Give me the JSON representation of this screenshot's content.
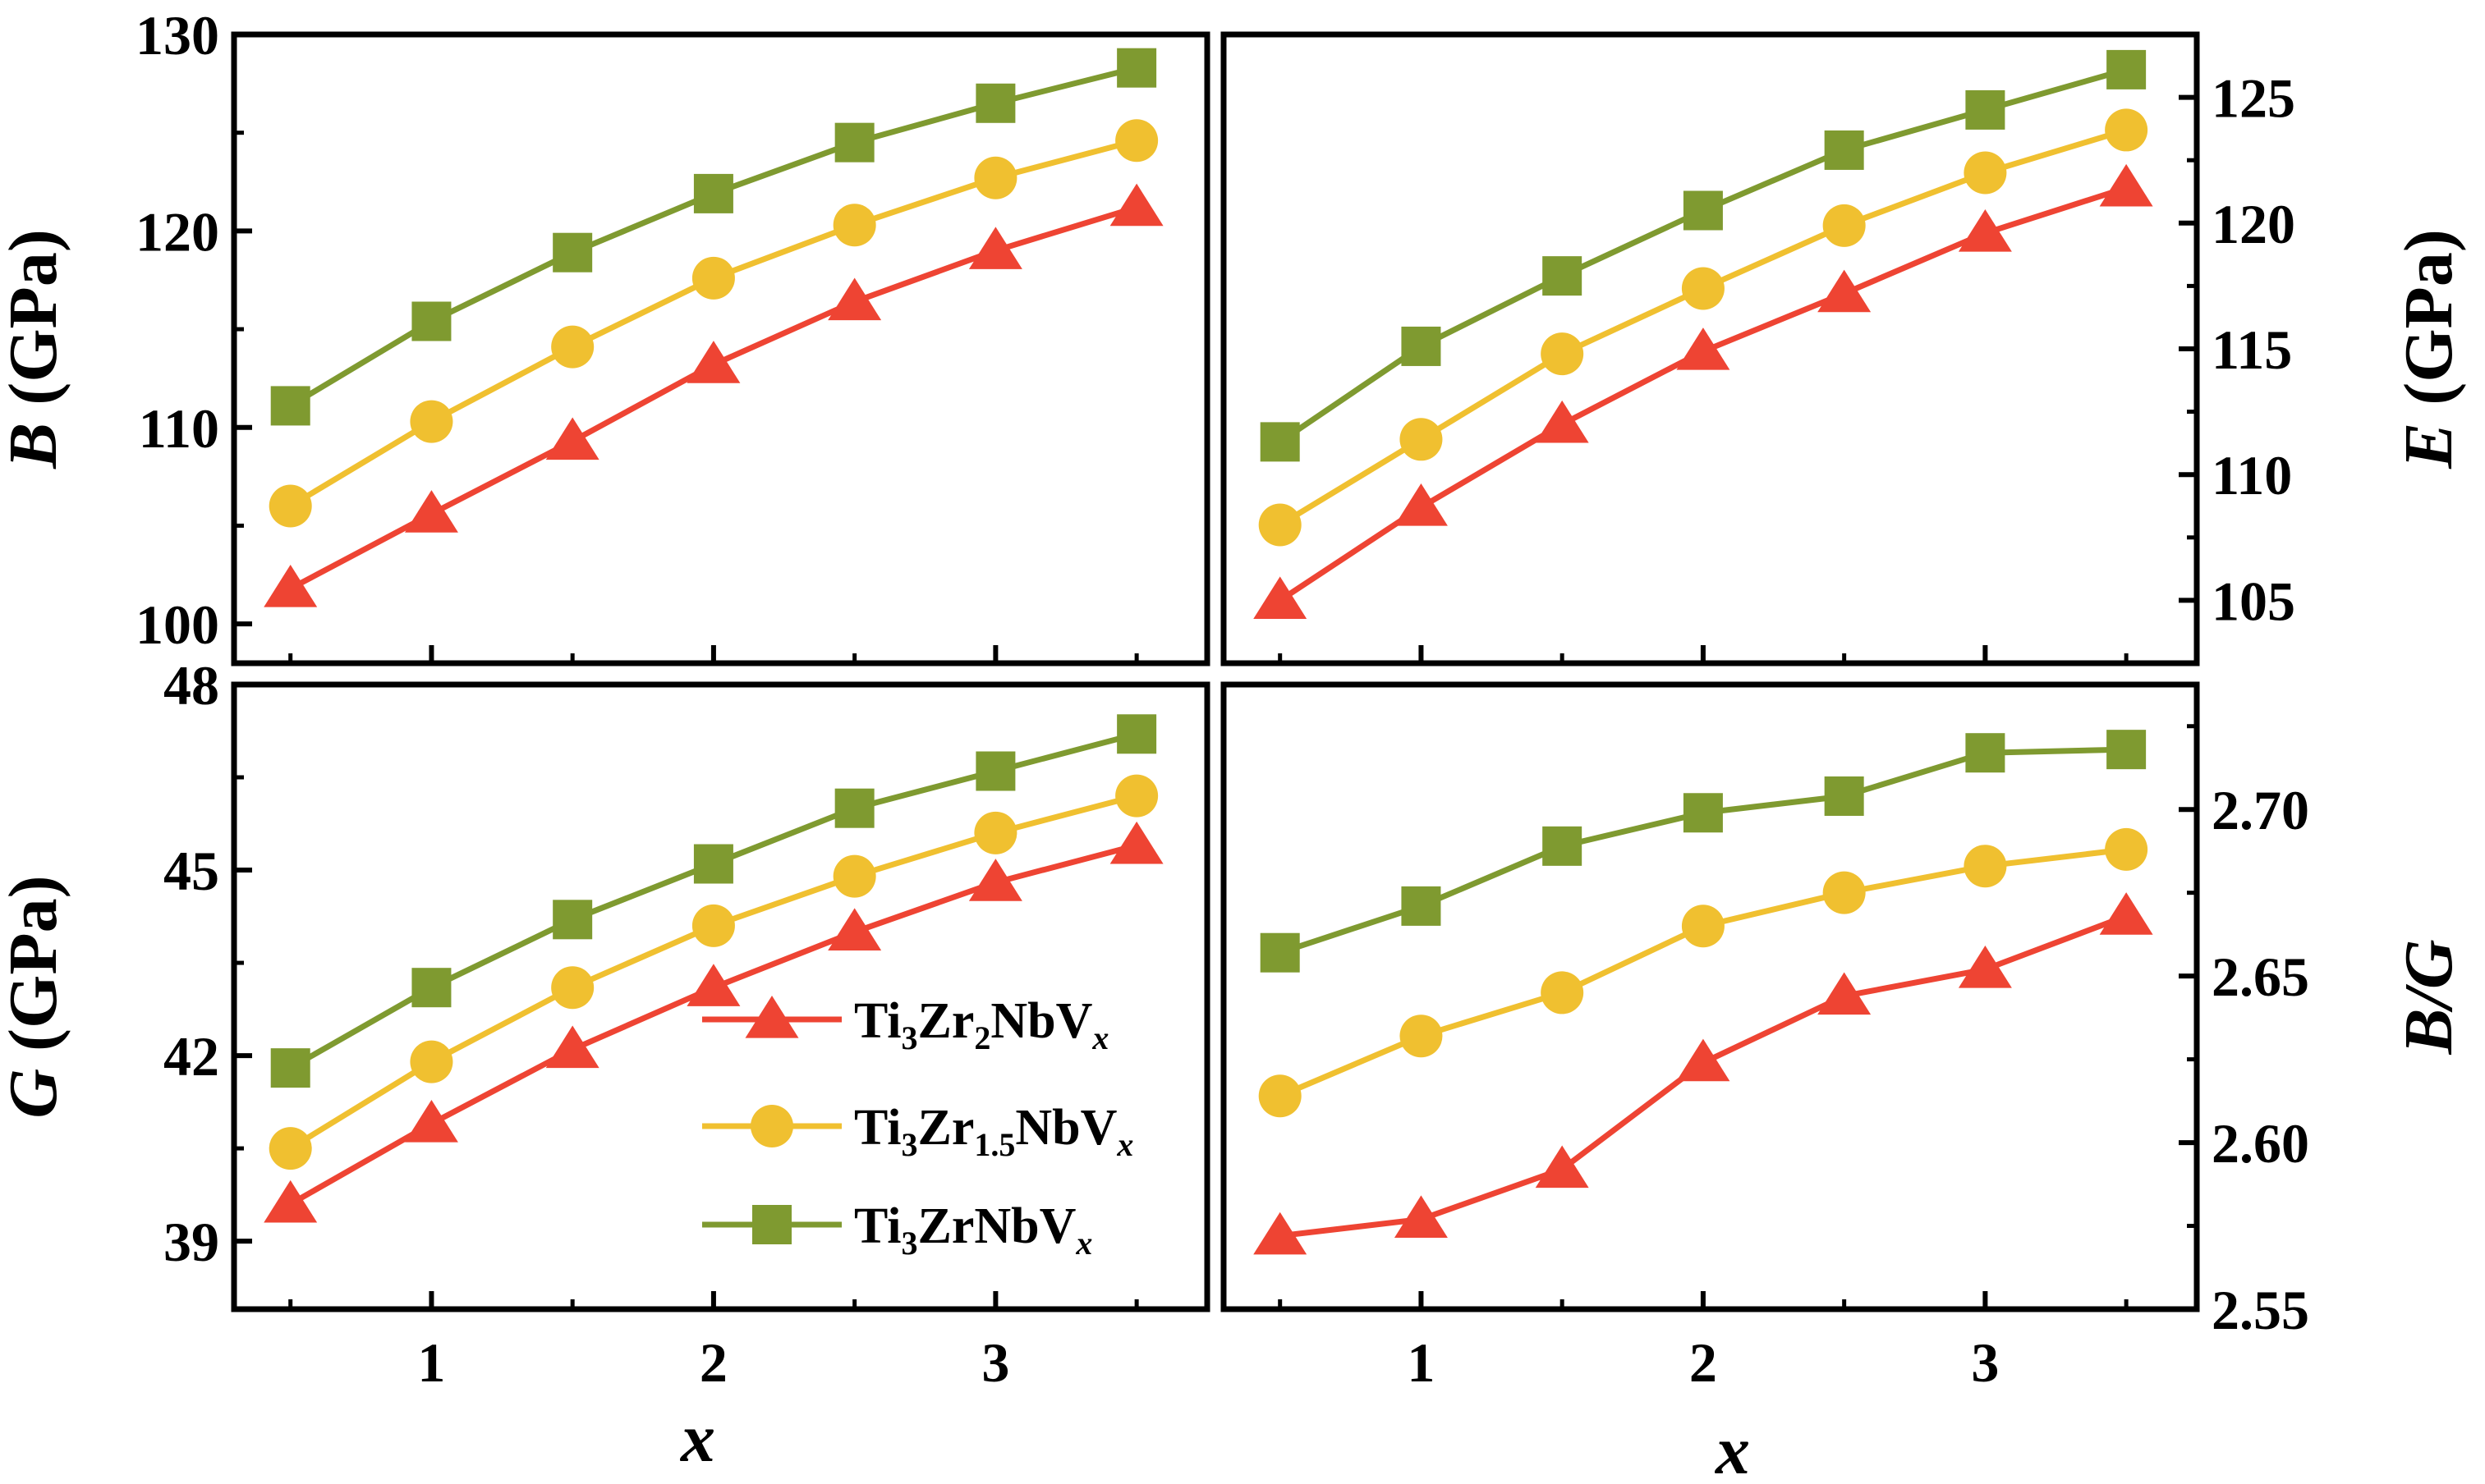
{
  "chart_data": {
    "type": "line",
    "x": [
      0.5,
      1,
      1.5,
      2,
      2.5,
      3,
      3.5
    ],
    "xlabel": "x",
    "xlim": [
      0.3,
      3.75
    ],
    "xticks": [
      1,
      2,
      3
    ],
    "legend": {
      "placement": "lower-right of bottom-left panel",
      "entries": [
        {
          "parts": [
            "Ti",
            "3",
            "Zr",
            "2",
            "NbV",
            "x"
          ],
          "marker": "triangle",
          "color": "#ee4433"
        },
        {
          "parts": [
            "Ti",
            "3",
            "Zr",
            "1.5",
            "NbV",
            "x"
          ],
          "marker": "circle",
          "color": "#f0c030"
        },
        {
          "parts": [
            "Ti",
            "3",
            "ZrNbV",
            "x"
          ],
          "marker": "square",
          "color": "#7f9a30"
        }
      ]
    },
    "panels": [
      {
        "id": "B",
        "ylabel_symbol": "B",
        "ylabel_unit": " (GPa)",
        "ylabel_side": "left",
        "ylim": [
          98,
          130
        ],
        "yticks": [
          100,
          110,
          120,
          130
        ],
        "ytick_labels": [
          "100",
          "110",
          "120",
          "130"
        ],
        "series": [
          {
            "name": "Ti3Zr2NbVx",
            "values": [
              101.8,
              105.6,
              109.3,
              113.2,
              116.4,
              119.0,
              121.2
            ]
          },
          {
            "name": "Ti3Zr1.5NbVx",
            "values": [
              106.0,
              110.3,
              114.1,
              117.6,
              120.3,
              122.7,
              124.6
            ]
          },
          {
            "name": "Ti3ZrNbVx",
            "values": [
              111.1,
              115.4,
              118.9,
              121.9,
              124.5,
              126.5,
              128.3
            ]
          }
        ]
      },
      {
        "id": "E",
        "ylabel_symbol": "E",
        "ylabel_unit": " (GPa)",
        "ylabel_side": "right",
        "ylim": [
          102.5,
          127.5
        ],
        "yticks": [
          105,
          110,
          115,
          120,
          125
        ],
        "ytick_labels": [
          "105",
          "110",
          "115",
          "120",
          "125"
        ],
        "series": [
          {
            "name": "Ti3Zr2NbVx",
            "values": [
              105.0,
              108.7,
              112.0,
              114.9,
              117.2,
              119.6,
              121.4
            ]
          },
          {
            "name": "Ti3Zr1.5NbVx",
            "values": [
              108.0,
              111.4,
              114.8,
              117.4,
              119.9,
              122.0,
              123.7
            ]
          },
          {
            "name": "Ti3ZrNbVx",
            "values": [
              111.3,
              115.1,
              117.9,
              120.5,
              122.9,
              124.5,
              126.1
            ]
          }
        ]
      },
      {
        "id": "G",
        "ylabel_symbol": "G",
        "ylabel_unit": " (GPa)",
        "ylabel_side": "left",
        "ylim": [
          37.9,
          48
        ],
        "yticks": [
          39,
          42,
          45,
          48
        ],
        "ytick_labels": [
          "39",
          "42",
          "45",
          "48"
        ],
        "series": [
          {
            "name": "Ti3Zr2NbVx",
            "values": [
              39.6,
              40.9,
              42.1,
              43.1,
              44.0,
              44.8,
              45.4
            ]
          },
          {
            "name": "Ti3Zr1.5NbVx",
            "values": [
              40.5,
              41.9,
              43.1,
              44.1,
              44.9,
              45.6,
              46.2
            ]
          },
          {
            "name": "Ti3ZrNbVx",
            "values": [
              41.8,
              43.1,
              44.2,
              45.1,
              46.0,
              46.6,
              47.2
            ]
          }
        ]
      },
      {
        "id": "BG",
        "ylabel_symbol": "B/G",
        "ylabel_unit": "",
        "ylabel_side": "right",
        "ylim": [
          2.55,
          2.7375
        ],
        "yticks": [
          2.55,
          2.6,
          2.65,
          2.7
        ],
        "ytick_labels": [
          "2.55",
          "2.60",
          "2.65",
          "2.70"
        ],
        "series": [
          {
            "name": "Ti3Zr2NbVx",
            "values": [
              2.572,
              2.577,
              2.592,
              2.624,
              2.644,
              2.652,
              2.668
            ]
          },
          {
            "name": "Ti3Zr1.5NbVx",
            "values": [
              2.614,
              2.632,
              2.645,
              2.665,
              2.675,
              2.683,
              2.688
            ]
          },
          {
            "name": "Ti3ZrNbVx",
            "values": [
              2.657,
              2.671,
              2.689,
              2.699,
              2.704,
              2.717,
              2.718
            ]
          }
        ]
      }
    ]
  }
}
